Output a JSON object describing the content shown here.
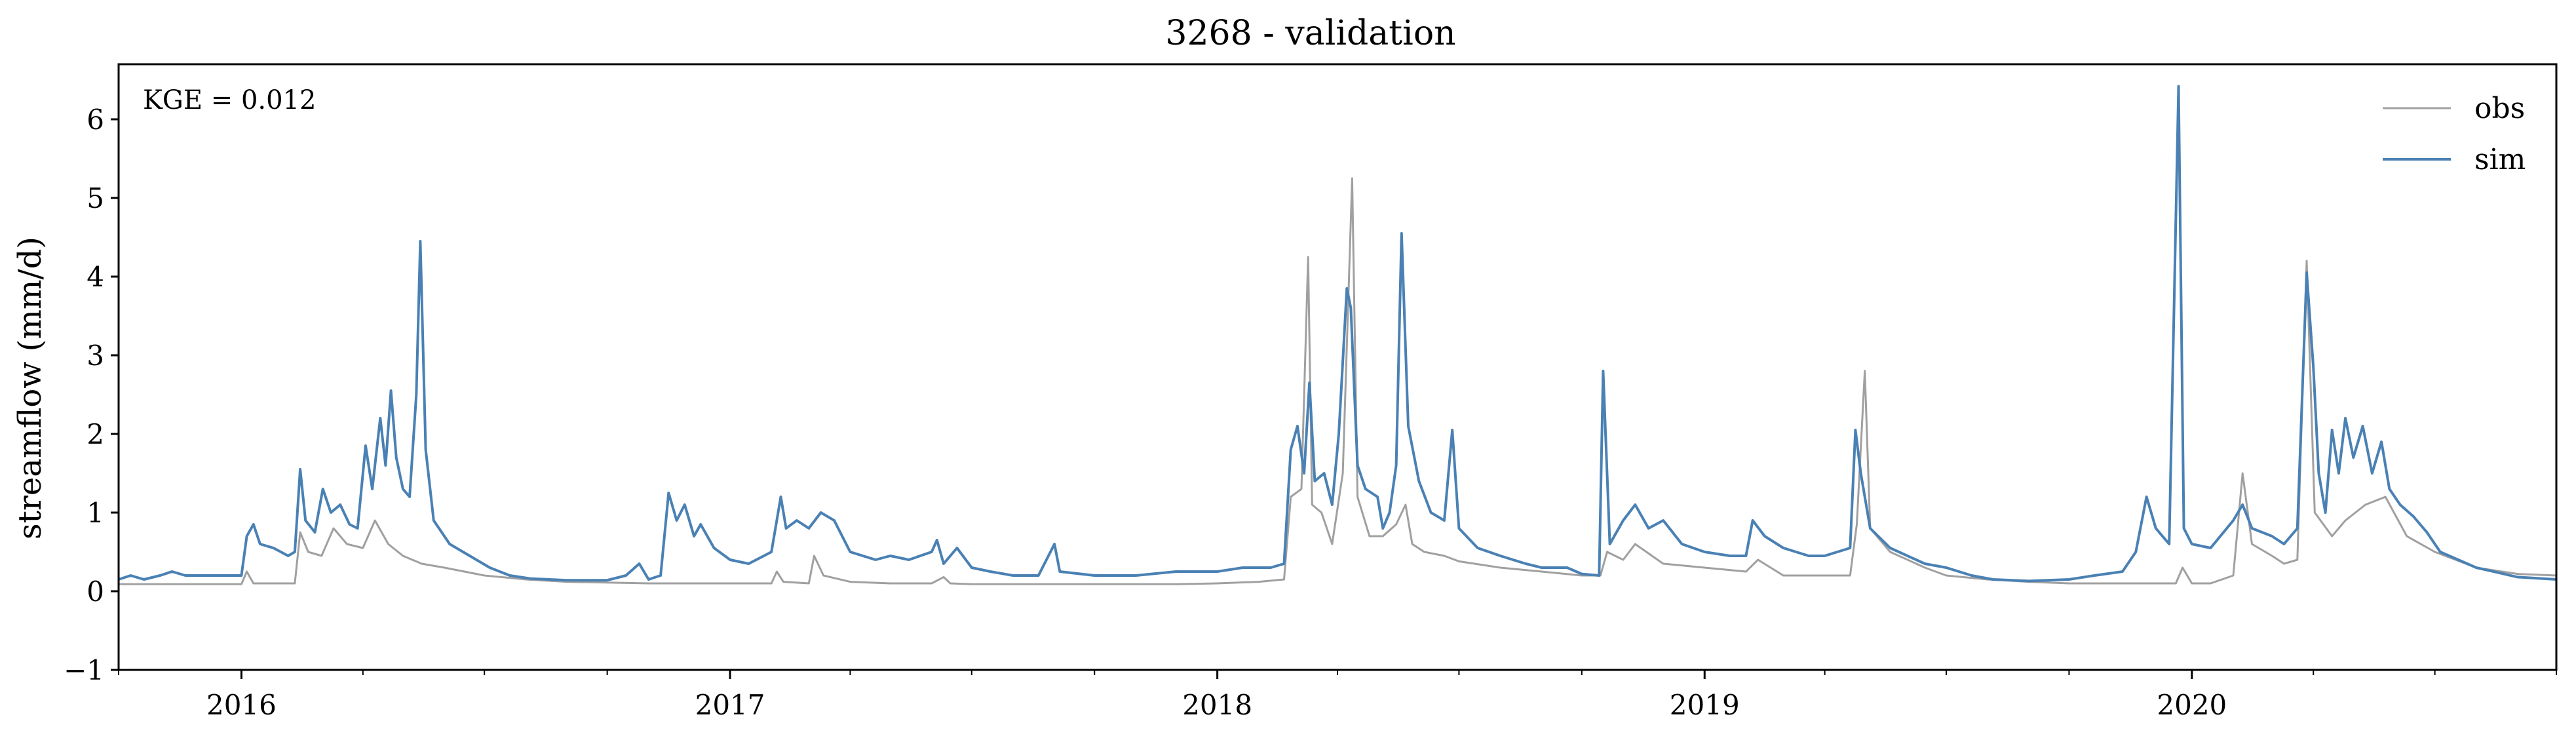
{
  "chart_data": {
    "type": "line",
    "title": "3268 - validation",
    "xlabel": "",
    "ylabel": "streamflow (mm/d)",
    "annotation": "KGE = 0.012",
    "legend_position": "top-right",
    "grid": false,
    "xlim": [
      "2015-10-01",
      "2020-09-30"
    ],
    "ylim": [
      -1,
      6.7
    ],
    "y_ticks": [
      -1,
      0,
      1,
      2,
      3,
      4,
      5,
      6
    ],
    "y_tick_labels": [
      "−1",
      "0",
      "1",
      "2",
      "3",
      "4",
      "5",
      "6"
    ],
    "x_ticks": [
      "2016-01-01",
      "2017-01-01",
      "2018-01-01",
      "2019-01-01",
      "2020-01-01"
    ],
    "x_tick_labels": [
      "2016",
      "2017",
      "2018",
      "2019",
      "2020"
    ],
    "series": [
      {
        "name": "obs",
        "color": "#a0a0a0",
        "points": [
          [
            "2015-10-01",
            0.09
          ],
          [
            "2015-11-01",
            0.09
          ],
          [
            "2015-12-01",
            0.09
          ],
          [
            "2016-01-01",
            0.09
          ],
          [
            "2016-01-05",
            0.25
          ],
          [
            "2016-01-10",
            0.1
          ],
          [
            "2016-02-01",
            0.1
          ],
          [
            "2016-02-10",
            0.1
          ],
          [
            "2016-02-14",
            0.75
          ],
          [
            "2016-02-20",
            0.5
          ],
          [
            "2016-03-01",
            0.45
          ],
          [
            "2016-03-10",
            0.8
          ],
          [
            "2016-03-20",
            0.6
          ],
          [
            "2016-04-01",
            0.55
          ],
          [
            "2016-04-10",
            0.9
          ],
          [
            "2016-04-20",
            0.6
          ],
          [
            "2016-05-01",
            0.45
          ],
          [
            "2016-05-15",
            0.35
          ],
          [
            "2016-06-01",
            0.3
          ],
          [
            "2016-07-01",
            0.2
          ],
          [
            "2016-08-01",
            0.15
          ],
          [
            "2016-09-01",
            0.12
          ],
          [
            "2016-10-01",
            0.11
          ],
          [
            "2016-11-01",
            0.1
          ],
          [
            "2016-12-01",
            0.1
          ],
          [
            "2017-01-01",
            0.1
          ],
          [
            "2017-02-01",
            0.1
          ],
          [
            "2017-02-05",
            0.25
          ],
          [
            "2017-02-10",
            0.12
          ],
          [
            "2017-03-01",
            0.1
          ],
          [
            "2017-03-05",
            0.45
          ],
          [
            "2017-03-12",
            0.2
          ],
          [
            "2017-04-01",
            0.12
          ],
          [
            "2017-05-01",
            0.1
          ],
          [
            "2017-06-01",
            0.1
          ],
          [
            "2017-06-10",
            0.18
          ],
          [
            "2017-06-15",
            0.1
          ],
          [
            "2017-07-01",
            0.09
          ],
          [
            "2017-08-01",
            0.09
          ],
          [
            "2017-09-01",
            0.09
          ],
          [
            "2017-10-01",
            0.09
          ],
          [
            "2017-11-01",
            0.09
          ],
          [
            "2017-12-01",
            0.09
          ],
          [
            "2018-01-01",
            0.1
          ],
          [
            "2018-02-01",
            0.12
          ],
          [
            "2018-02-20",
            0.15
          ],
          [
            "2018-02-25",
            1.2
          ],
          [
            "2018-03-05",
            1.3
          ],
          [
            "2018-03-10",
            4.25
          ],
          [
            "2018-03-13",
            1.1
          ],
          [
            "2018-03-20",
            1.0
          ],
          [
            "2018-03-28",
            0.6
          ],
          [
            "2018-04-05",
            1.5
          ],
          [
            "2018-04-12",
            5.25
          ],
          [
            "2018-04-16",
            1.2
          ],
          [
            "2018-04-25",
            0.7
          ],
          [
            "2018-05-05",
            0.7
          ],
          [
            "2018-05-15",
            0.85
          ],
          [
            "2018-05-22",
            1.1
          ],
          [
            "2018-05-27",
            0.6
          ],
          [
            "2018-06-05",
            0.5
          ],
          [
            "2018-06-20",
            0.45
          ],
          [
            "2018-07-01",
            0.38
          ],
          [
            "2018-08-01",
            0.3
          ],
          [
            "2018-09-01",
            0.25
          ],
          [
            "2018-10-01",
            0.2
          ],
          [
            "2018-10-15",
            0.2
          ],
          [
            "2018-10-20",
            0.5
          ],
          [
            "2018-11-01",
            0.4
          ],
          [
            "2018-11-10",
            0.6
          ],
          [
            "2018-12-01",
            0.35
          ],
          [
            "2019-01-01",
            0.3
          ],
          [
            "2019-02-01",
            0.25
          ],
          [
            "2019-02-10",
            0.4
          ],
          [
            "2019-03-01",
            0.2
          ],
          [
            "2019-04-01",
            0.2
          ],
          [
            "2019-04-20",
            0.2
          ],
          [
            "2019-04-25",
            0.85
          ],
          [
            "2019-05-01",
            2.8
          ],
          [
            "2019-05-05",
            0.8
          ],
          [
            "2019-05-20",
            0.5
          ],
          [
            "2019-06-15",
            0.3
          ],
          [
            "2019-07-01",
            0.2
          ],
          [
            "2019-08-01",
            0.15
          ],
          [
            "2019-09-01",
            0.12
          ],
          [
            "2019-10-01",
            0.1
          ],
          [
            "2019-11-01",
            0.1
          ],
          [
            "2019-12-01",
            0.1
          ],
          [
            "2019-12-20",
            0.1
          ],
          [
            "2019-12-25",
            0.3
          ],
          [
            "2020-01-01",
            0.1
          ],
          [
            "2020-01-15",
            0.1
          ],
          [
            "2020-02-01",
            0.2
          ],
          [
            "2020-02-08",
            1.5
          ],
          [
            "2020-02-15",
            0.6
          ],
          [
            "2020-03-01",
            0.45
          ],
          [
            "2020-03-10",
            0.35
          ],
          [
            "2020-03-20",
            0.4
          ],
          [
            "2020-03-27",
            4.2
          ],
          [
            "2020-04-02",
            1.0
          ],
          [
            "2020-04-15",
            0.7
          ],
          [
            "2020-04-25",
            0.9
          ],
          [
            "2020-05-10",
            1.1
          ],
          [
            "2020-05-25",
            1.2
          ],
          [
            "2020-06-10",
            0.7
          ],
          [
            "2020-07-01",
            0.5
          ],
          [
            "2020-08-01",
            0.3
          ],
          [
            "2020-09-01",
            0.22
          ],
          [
            "2020-09-30",
            0.2
          ]
        ]
      },
      {
        "name": "sim",
        "color": "#4a81b4",
        "points": [
          [
            "2015-10-01",
            0.15
          ],
          [
            "2015-10-10",
            0.2
          ],
          [
            "2015-10-20",
            0.15
          ],
          [
            "2015-11-01",
            0.2
          ],
          [
            "2015-11-10",
            0.25
          ],
          [
            "2015-11-20",
            0.2
          ],
          [
            "2015-12-01",
            0.2
          ],
          [
            "2015-12-20",
            0.2
          ],
          [
            "2016-01-01",
            0.2
          ],
          [
            "2016-01-05",
            0.7
          ],
          [
            "2016-01-10",
            0.85
          ],
          [
            "2016-01-15",
            0.6
          ],
          [
            "2016-01-25",
            0.55
          ],
          [
            "2016-02-05",
            0.45
          ],
          [
            "2016-02-10",
            0.5
          ],
          [
            "2016-02-14",
            1.55
          ],
          [
            "2016-02-18",
            0.9
          ],
          [
            "2016-02-25",
            0.75
          ],
          [
            "2016-03-02",
            1.3
          ],
          [
            "2016-03-08",
            1.0
          ],
          [
            "2016-03-15",
            1.1
          ],
          [
            "2016-03-22",
            0.85
          ],
          [
            "2016-03-28",
            0.8
          ],
          [
            "2016-04-03",
            1.85
          ],
          [
            "2016-04-08",
            1.3
          ],
          [
            "2016-04-14",
            2.2
          ],
          [
            "2016-04-18",
            1.6
          ],
          [
            "2016-04-22",
            2.55
          ],
          [
            "2016-04-26",
            1.7
          ],
          [
            "2016-05-01",
            1.3
          ],
          [
            "2016-05-06",
            1.2
          ],
          [
            "2016-05-11",
            2.5
          ],
          [
            "2016-05-14",
            4.45
          ],
          [
            "2016-05-18",
            1.8
          ],
          [
            "2016-05-24",
            0.9
          ],
          [
            "2016-06-05",
            0.6
          ],
          [
            "2016-06-20",
            0.45
          ],
          [
            "2016-07-05",
            0.3
          ],
          [
            "2016-07-20",
            0.2
          ],
          [
            "2016-08-05",
            0.16
          ],
          [
            "2016-09-01",
            0.14
          ],
          [
            "2016-10-01",
            0.14
          ],
          [
            "2016-10-15",
            0.2
          ],
          [
            "2016-10-25",
            0.35
          ],
          [
            "2016-11-01",
            0.15
          ],
          [
            "2016-11-10",
            0.2
          ],
          [
            "2016-11-16",
            1.25
          ],
          [
            "2016-11-22",
            0.9
          ],
          [
            "2016-11-28",
            1.1
          ],
          [
            "2016-12-05",
            0.7
          ],
          [
            "2016-12-10",
            0.85
          ],
          [
            "2016-12-20",
            0.55
          ],
          [
            "2017-01-01",
            0.4
          ],
          [
            "2017-01-15",
            0.35
          ],
          [
            "2017-02-01",
            0.5
          ],
          [
            "2017-02-08",
            1.2
          ],
          [
            "2017-02-12",
            0.8
          ],
          [
            "2017-02-20",
            0.9
          ],
          [
            "2017-03-01",
            0.8
          ],
          [
            "2017-03-10",
            1.0
          ],
          [
            "2017-03-20",
            0.9
          ],
          [
            "2017-04-01",
            0.5
          ],
          [
            "2017-04-20",
            0.4
          ],
          [
            "2017-05-01",
            0.45
          ],
          [
            "2017-05-15",
            0.4
          ],
          [
            "2017-06-01",
            0.5
          ],
          [
            "2017-06-05",
            0.65
          ],
          [
            "2017-06-10",
            0.35
          ],
          [
            "2017-06-20",
            0.55
          ],
          [
            "2017-07-01",
            0.3
          ],
          [
            "2017-07-15",
            0.25
          ],
          [
            "2017-08-01",
            0.2
          ],
          [
            "2017-08-20",
            0.2
          ],
          [
            "2017-09-01",
            0.6
          ],
          [
            "2017-09-05",
            0.25
          ],
          [
            "2017-10-01",
            0.2
          ],
          [
            "2017-11-01",
            0.2
          ],
          [
            "2017-12-01",
            0.25
          ],
          [
            "2018-01-01",
            0.25
          ],
          [
            "2018-01-20",
            0.3
          ],
          [
            "2018-02-10",
            0.3
          ],
          [
            "2018-02-20",
            0.35
          ],
          [
            "2018-02-25",
            1.8
          ],
          [
            "2018-03-02",
            2.1
          ],
          [
            "2018-03-07",
            1.5
          ],
          [
            "2018-03-11",
            2.65
          ],
          [
            "2018-03-15",
            1.4
          ],
          [
            "2018-03-22",
            1.5
          ],
          [
            "2018-03-28",
            1.1
          ],
          [
            "2018-04-02",
            2.0
          ],
          [
            "2018-04-08",
            3.85
          ],
          [
            "2018-04-11",
            3.6
          ],
          [
            "2018-04-16",
            1.6
          ],
          [
            "2018-04-22",
            1.3
          ],
          [
            "2018-05-01",
            1.2
          ],
          [
            "2018-05-05",
            0.8
          ],
          [
            "2018-05-10",
            1.0
          ],
          [
            "2018-05-15",
            1.6
          ],
          [
            "2018-05-19",
            4.55
          ],
          [
            "2018-05-24",
            2.1
          ],
          [
            "2018-06-01",
            1.4
          ],
          [
            "2018-06-10",
            1.0
          ],
          [
            "2018-06-20",
            0.9
          ],
          [
            "2018-06-26",
            2.05
          ],
          [
            "2018-07-01",
            0.8
          ],
          [
            "2018-07-15",
            0.55
          ],
          [
            "2018-08-01",
            0.45
          ],
          [
            "2018-08-20",
            0.35
          ],
          [
            "2018-09-01",
            0.3
          ],
          [
            "2018-09-20",
            0.3
          ],
          [
            "2018-10-01",
            0.22
          ],
          [
            "2018-10-14",
            0.2
          ],
          [
            "2018-10-17",
            2.8
          ],
          [
            "2018-10-22",
            0.6
          ],
          [
            "2018-11-01",
            0.9
          ],
          [
            "2018-11-10",
            1.1
          ],
          [
            "2018-11-20",
            0.8
          ],
          [
            "2018-12-01",
            0.9
          ],
          [
            "2018-12-15",
            0.6
          ],
          [
            "2019-01-01",
            0.5
          ],
          [
            "2019-01-20",
            0.45
          ],
          [
            "2019-02-01",
            0.45
          ],
          [
            "2019-02-06",
            0.9
          ],
          [
            "2019-02-15",
            0.7
          ],
          [
            "2019-03-01",
            0.55
          ],
          [
            "2019-03-20",
            0.45
          ],
          [
            "2019-04-01",
            0.45
          ],
          [
            "2019-04-20",
            0.55
          ],
          [
            "2019-04-24",
            2.05
          ],
          [
            "2019-04-28",
            1.5
          ],
          [
            "2019-05-05",
            0.8
          ],
          [
            "2019-05-20",
            0.55
          ],
          [
            "2019-06-15",
            0.35
          ],
          [
            "2019-07-01",
            0.3
          ],
          [
            "2019-07-20",
            0.2
          ],
          [
            "2019-08-05",
            0.15
          ],
          [
            "2019-09-01",
            0.13
          ],
          [
            "2019-10-01",
            0.15
          ],
          [
            "2019-10-20",
            0.2
          ],
          [
            "2019-11-10",
            0.25
          ],
          [
            "2019-11-20",
            0.5
          ],
          [
            "2019-11-28",
            1.2
          ],
          [
            "2019-12-05",
            0.8
          ],
          [
            "2019-12-15",
            0.6
          ],
          [
            "2019-12-22",
            6.42
          ],
          [
            "2019-12-26",
            0.8
          ],
          [
            "2020-01-01",
            0.6
          ],
          [
            "2020-01-15",
            0.55
          ],
          [
            "2020-02-01",
            0.9
          ],
          [
            "2020-02-08",
            1.1
          ],
          [
            "2020-02-15",
            0.8
          ],
          [
            "2020-03-01",
            0.7
          ],
          [
            "2020-03-10",
            0.6
          ],
          [
            "2020-03-20",
            0.8
          ],
          [
            "2020-03-27",
            4.05
          ],
          [
            "2020-04-01",
            2.85
          ],
          [
            "2020-04-05",
            1.5
          ],
          [
            "2020-04-10",
            1.0
          ],
          [
            "2020-04-15",
            2.05
          ],
          [
            "2020-04-20",
            1.5
          ],
          [
            "2020-04-25",
            2.2
          ],
          [
            "2020-05-01",
            1.7
          ],
          [
            "2020-05-08",
            2.1
          ],
          [
            "2020-05-15",
            1.5
          ],
          [
            "2020-05-22",
            1.9
          ],
          [
            "2020-05-28",
            1.3
          ],
          [
            "2020-06-05",
            1.1
          ],
          [
            "2020-06-15",
            0.95
          ],
          [
            "2020-06-25",
            0.75
          ],
          [
            "2020-07-05",
            0.5
          ],
          [
            "2020-08-01",
            0.3
          ],
          [
            "2020-09-01",
            0.18
          ],
          [
            "2020-09-30",
            0.15
          ]
        ]
      }
    ]
  }
}
